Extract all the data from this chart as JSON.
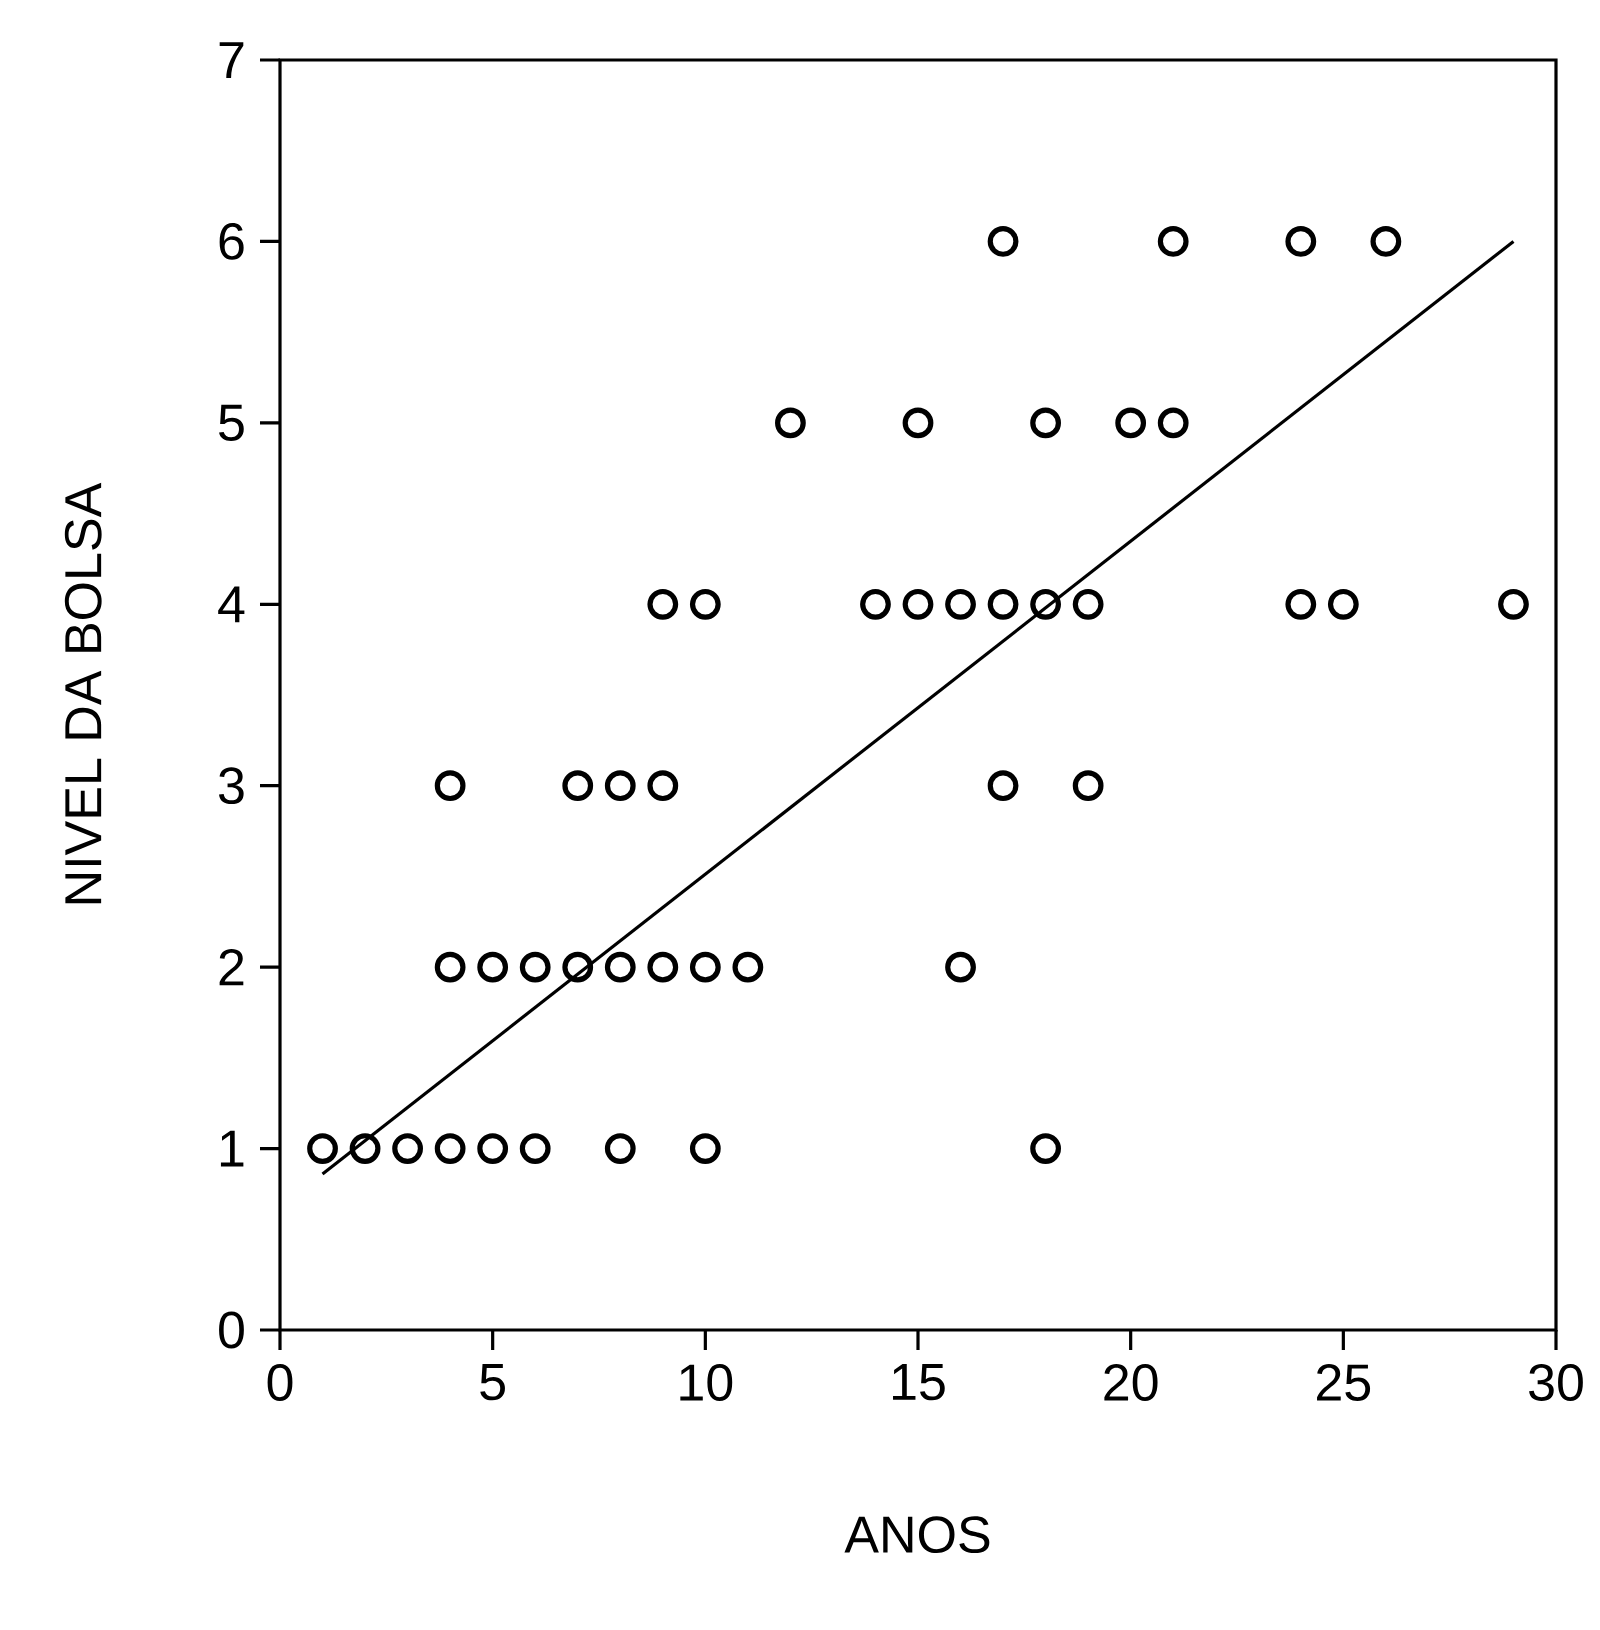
{
  "chart_data": {
    "type": "scatter",
    "xlabel": "ANOS",
    "ylabel": "NIVEL DA BOLSA",
    "xlim": [
      0,
      30
    ],
    "ylim": [
      0,
      7
    ],
    "xticks": [
      0,
      5,
      10,
      15,
      20,
      25,
      30
    ],
    "yticks": [
      0,
      1,
      2,
      3,
      4,
      5,
      6,
      7
    ],
    "grid": false,
    "marker": "circle",
    "series": [
      {
        "color": "#000000",
        "x": [
          1,
          2,
          3,
          4,
          5,
          6,
          8,
          10,
          18,
          4,
          5,
          6,
          7,
          8,
          9,
          10,
          11,
          16,
          4,
          7,
          8,
          9,
          17,
          19,
          9,
          10,
          14,
          15,
          16,
          17,
          18,
          19,
          24,
          25,
          29,
          12,
          15,
          18,
          20,
          21,
          17,
          21,
          24,
          26
        ],
        "values": [
          1,
          1,
          1,
          1,
          1,
          1,
          1,
          1,
          1,
          2,
          2,
          2,
          2,
          2,
          2,
          2,
          2,
          2,
          3,
          3,
          3,
          3,
          3,
          3,
          4,
          4,
          4,
          4,
          4,
          4,
          4,
          4,
          4,
          4,
          4,
          5,
          5,
          5,
          5,
          5,
          6,
          6,
          6,
          6
        ]
      },
      {
        "type": "line",
        "color": "#000000",
        "marker": "none",
        "x": [
          1,
          29
        ],
        "values": [
          0.86,
          6.0
        ]
      }
    ]
  }
}
